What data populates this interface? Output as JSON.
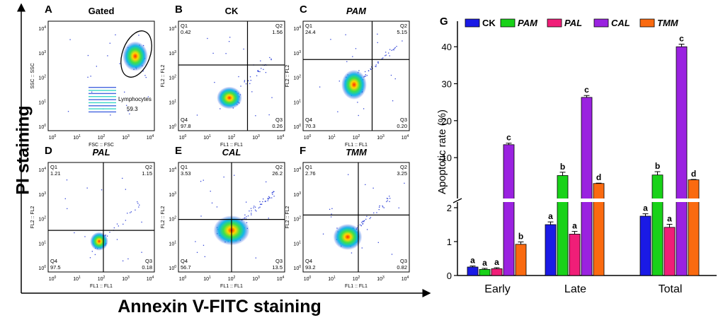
{
  "flow": {
    "y_title": "PI staining",
    "x_title": "Annexin V-FITC staining",
    "tick_powers": [
      "0",
      "1",
      "2",
      "3",
      "4"
    ],
    "tick_base": "10",
    "panels": [
      {
        "letter": "A",
        "title": "Gated",
        "italic": false,
        "xlab": "FSC :: FSC",
        "ylab": "SSC :: SSC",
        "gate_label": "Lymphocytes",
        "gate_value": "59.3"
      },
      {
        "letter": "B",
        "title": "CK",
        "italic": false,
        "xlab": "FL1 :: FL1",
        "ylab": "FL2 :: FL2",
        "q": [
          "Q1",
          "Q2",
          "Q3",
          "Q4"
        ],
        "v": [
          "0.42",
          "1.56",
          "0.26",
          "97.8"
        ]
      },
      {
        "letter": "C",
        "title": "PAM",
        "italic": true,
        "xlab": "FL1 :: FL1",
        "ylab": "FL2 :: FL2",
        "q": [
          "Q1",
          "Q2",
          "Q3",
          "Q4"
        ],
        "v": [
          "24.4",
          "5.15",
          "0.20",
          "70.3"
        ]
      },
      {
        "letter": "D",
        "title": "PAL",
        "italic": true,
        "xlab": "FL1 :: FL1",
        "ylab": "FL2 :: FL2",
        "q": [
          "Q1",
          "Q2",
          "Q3",
          "Q4"
        ],
        "v": [
          "1.21",
          "1.15",
          "0.18",
          "97.5"
        ]
      },
      {
        "letter": "E",
        "title": "CAL",
        "italic": true,
        "xlab": "FL1 :: FL1",
        "ylab": "FL2 :: FL2",
        "q": [
          "Q1",
          "Q2",
          "Q3",
          "Q4"
        ],
        "v": [
          "3.53",
          "26.2",
          "13.5",
          "56.7"
        ]
      },
      {
        "letter": "F",
        "title": "TMM",
        "italic": true,
        "xlab": "FL1 :: FL1",
        "ylab": "FL2 :: FL2",
        "q": [
          "Q1",
          "Q2",
          "Q3",
          "Q4"
        ],
        "v": [
          "2.76",
          "3.25",
          "0.82",
          "93.2"
        ]
      }
    ]
  },
  "chart_data": {
    "type": "bar",
    "panel_letter": "G",
    "ylabel": "Apoptotic rate (%)",
    "categories": [
      "Early",
      "Late",
      "Total"
    ],
    "axis_break": true,
    "lower_range": [
      0,
      2
    ],
    "upper_range": [
      2,
      45
    ],
    "yticks": [
      0,
      1,
      2,
      10,
      20,
      30,
      40
    ],
    "series": [
      {
        "name": "CK",
        "italic": false,
        "color": "#1a1ae6",
        "values": [
          0.25,
          1.5,
          1.75
        ],
        "errors": [
          0.03,
          0.08,
          0.07
        ],
        "letters": [
          "a",
          "a",
          "a"
        ]
      },
      {
        "name": "PAM",
        "italic": true,
        "color": "#19d219",
        "values": [
          0.18,
          5.15,
          5.3
        ],
        "errors": [
          0.03,
          0.9,
          0.9
        ],
        "letters": [
          "a",
          "b",
          "b"
        ]
      },
      {
        "name": "PAL",
        "italic": true,
        "color": "#f01e78",
        "values": [
          0.2,
          1.22,
          1.42
        ],
        "errors": [
          0.03,
          0.08,
          0.09
        ],
        "letters": [
          "a",
          "a",
          "a"
        ]
      },
      {
        "name": "CAL",
        "italic": true,
        "color": "#9a22e0",
        "values": [
          13.5,
          26.3,
          40.0
        ],
        "errors": [
          0.4,
          0.5,
          0.7
        ],
        "letters": [
          "c",
          "c",
          "c"
        ]
      },
      {
        "name": "TMM",
        "italic": true,
        "color": "#fa6a10",
        "values": [
          0.92,
          3.0,
          4.0
        ],
        "errors": [
          0.07,
          0.1,
          0.1
        ],
        "letters": [
          "b",
          "d",
          "d"
        ]
      }
    ]
  }
}
